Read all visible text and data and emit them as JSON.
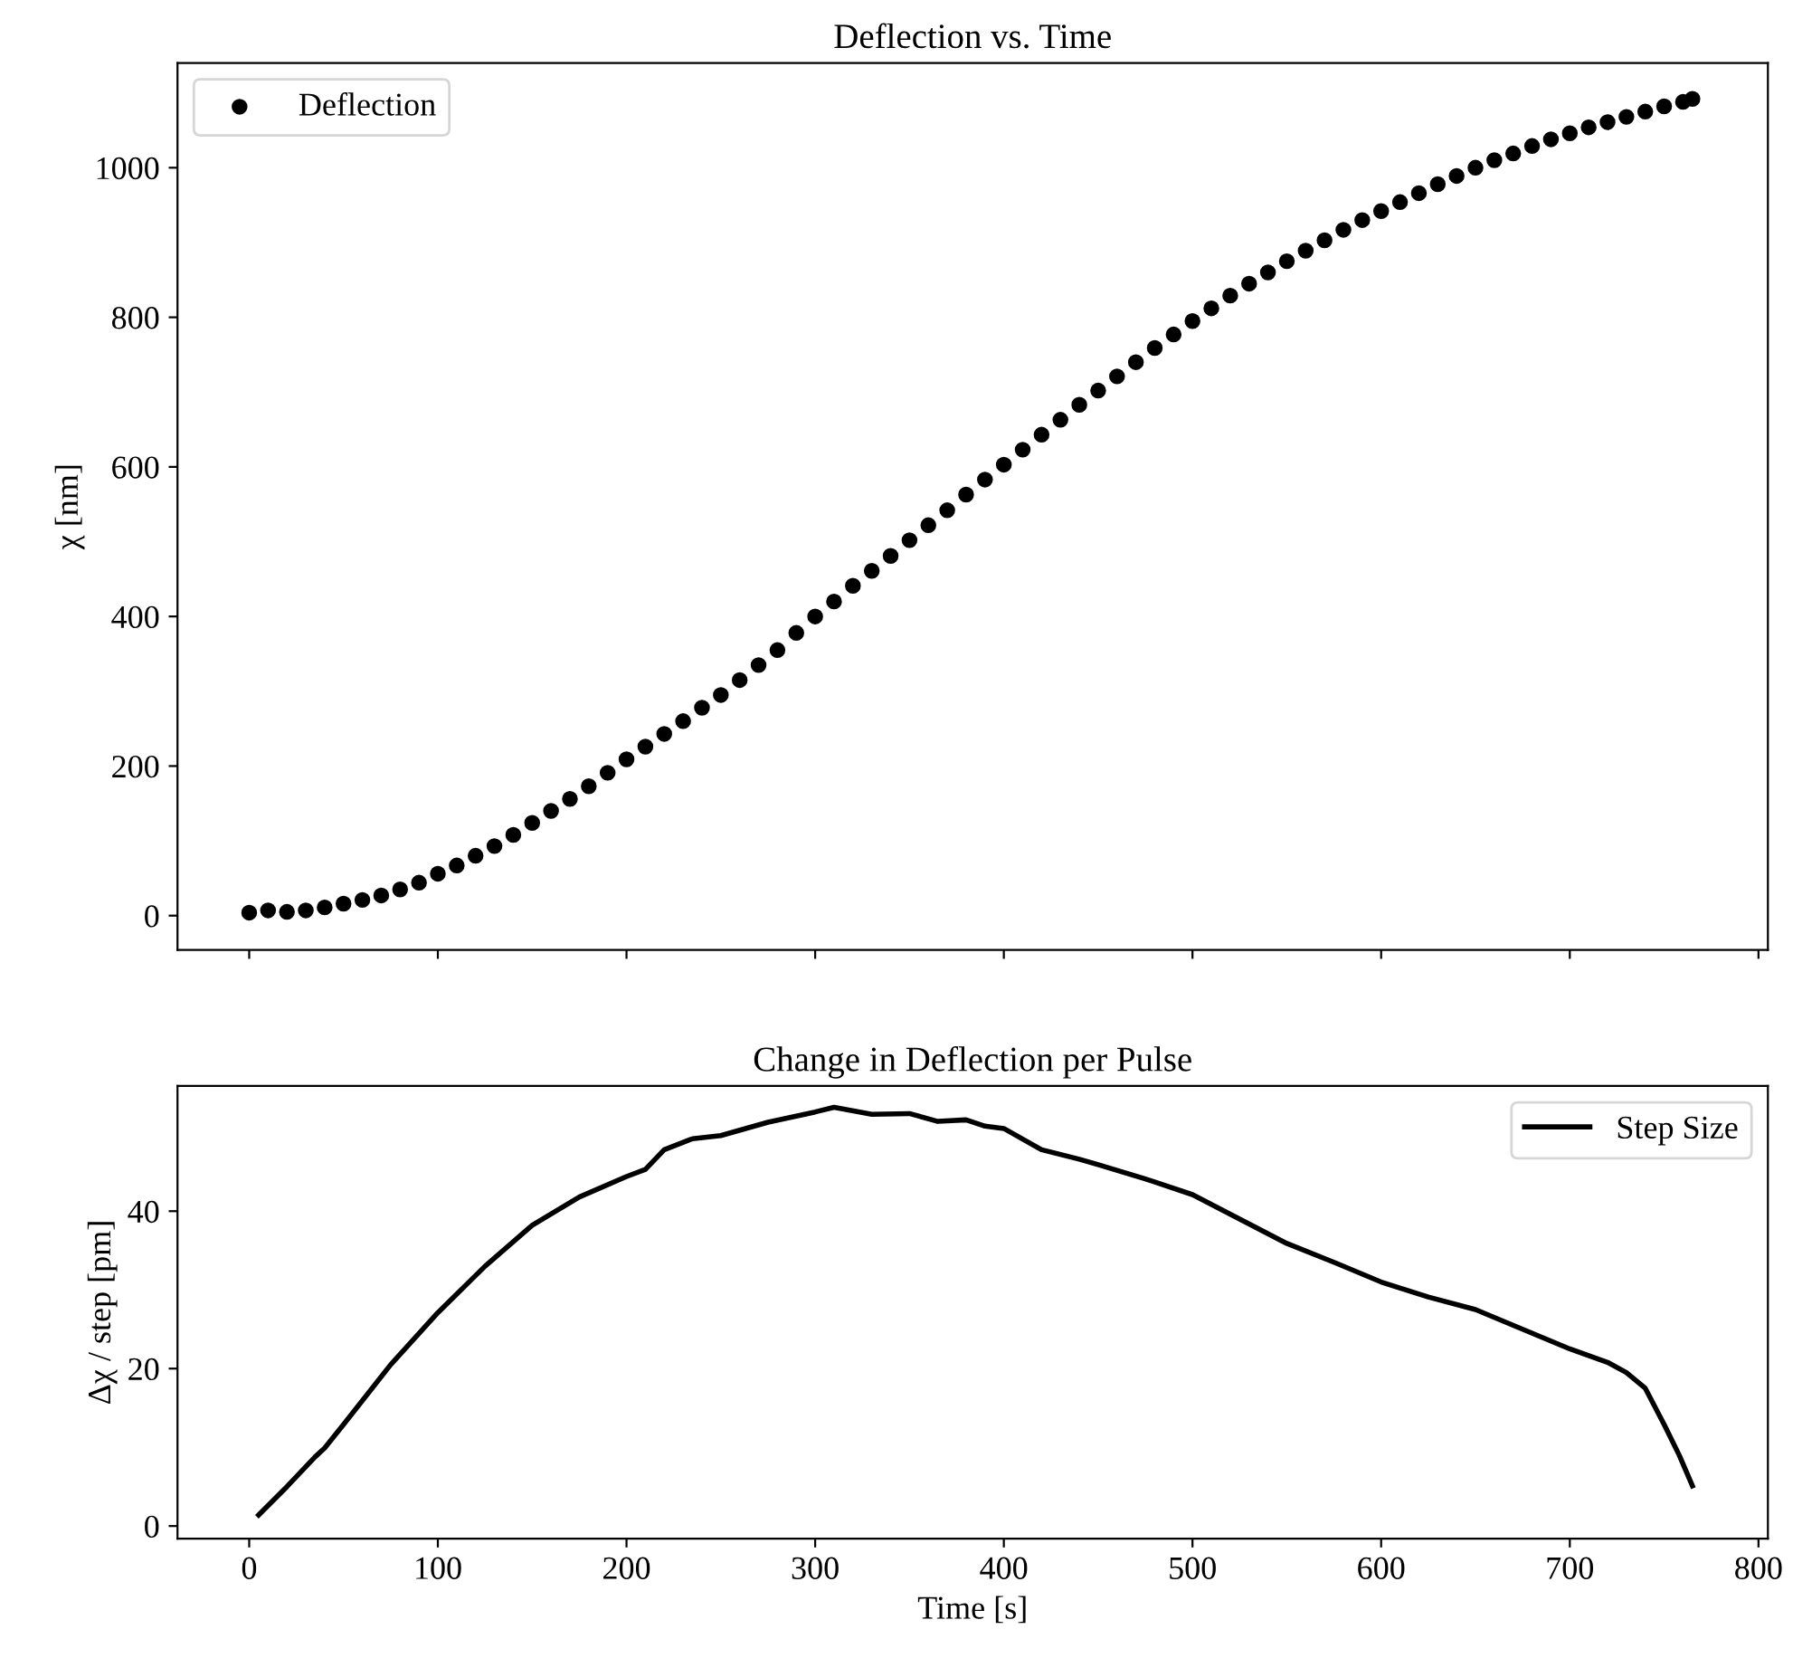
{
  "chart_data": [
    {
      "type": "scatter",
      "title": "Deflection vs. Time",
      "ylabel": "χ [nm]",
      "marker": "circle",
      "legend": "top left",
      "tick_labels": "y",
      "xlim": [
        -38,
        805
      ],
      "xticks": [
        0,
        100,
        200,
        300,
        400,
        500,
        600,
        700,
        800
      ],
      "ylim": [
        -46,
        1140
      ],
      "yticks": [
        0,
        200,
        400,
        600,
        800,
        1000
      ],
      "series": [
        {
          "name": "Deflection",
          "color": "#000000",
          "x": [
            0,
            10,
            20,
            30,
            40,
            50,
            60,
            70,
            80,
            90,
            100,
            110,
            120,
            130,
            140,
            150,
            160,
            170,
            180,
            190,
            200,
            210,
            220,
            230,
            240,
            250,
            260,
            270,
            280,
            290,
            300,
            310,
            320,
            330,
            340,
            350,
            360,
            370,
            380,
            390,
            400,
            410,
            420,
            430,
            440,
            450,
            460,
            470,
            480,
            490,
            500,
            510,
            520,
            530,
            540,
            550,
            560,
            570,
            580,
            590,
            600,
            610,
            620,
            630,
            640,
            650,
            660,
            670,
            680,
            690,
            700,
            710,
            720,
            730,
            740,
            750,
            760,
            765
          ],
          "values": [
            4,
            7,
            5,
            7,
            11,
            16,
            21,
            27,
            35,
            44,
            56,
            67,
            80,
            93,
            108,
            124,
            140,
            156,
            173,
            191,
            209,
            226,
            243,
            260,
            278,
            295,
            315,
            335,
            355,
            378,
            400,
            420,
            441,
            461,
            481,
            502,
            522,
            542,
            563,
            583,
            603,
            623,
            643,
            663,
            683,
            702,
            721,
            740,
            759,
            777,
            795,
            812,
            829,
            845,
            860,
            875,
            889,
            903,
            917,
            930,
            942,
            954,
            966,
            978,
            989,
            1000,
            1010,
            1019,
            1029,
            1038,
            1046,
            1054,
            1061,
            1068,
            1075,
            1082,
            1088,
            1092
          ]
        }
      ]
    },
    {
      "type": "line",
      "title": "Change in Deflection per Pulse",
      "xlabel": "Time [s]",
      "ylabel": "Δχ / step [pm]",
      "legend": "top right",
      "marker": "none",
      "line_style": "solid",
      "xlim": [
        -38,
        805
      ],
      "xticks": [
        0,
        100,
        200,
        300,
        400,
        500,
        600,
        700,
        800
      ],
      "ylim": [
        -1.6,
        55.9
      ],
      "yticks": [
        0,
        20,
        40
      ],
      "series": [
        {
          "name": "Step Size",
          "color": "#000000",
          "x": [
            5,
            20,
            35,
            40,
            50,
            75,
            100,
            125,
            150,
            175,
            200,
            210,
            220,
            235,
            250,
            275,
            300,
            310,
            330,
            350,
            365,
            380,
            390,
            400,
            420,
            440,
            450,
            475,
            500,
            525,
            550,
            575,
            600,
            625,
            650,
            675,
            700,
            720,
            730,
            740,
            750,
            758,
            765
          ],
          "values": [
            1.4,
            5,
            8.8,
            9.9,
            12.9,
            20.5,
            27.1,
            33,
            38.2,
            41.8,
            44.4,
            45.3,
            47.8,
            49.2,
            49.6,
            51.3,
            52.6,
            53.2,
            52.3,
            52.4,
            51.4,
            51.6,
            50.8,
            50.5,
            47.8,
            46.6,
            45.9,
            44.1,
            42.1,
            39,
            35.9,
            33.5,
            31.0,
            29.1,
            27.5,
            25,
            22.5,
            20.8,
            19.5,
            17.5,
            12.9,
            9,
            5.1
          ]
        }
      ]
    }
  ]
}
